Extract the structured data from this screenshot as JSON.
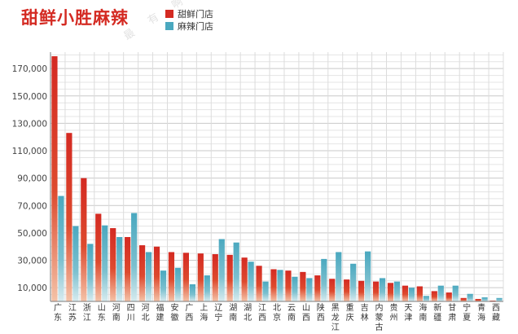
{
  "title": "甜鲜小胜麻辣",
  "legend": [
    {
      "label": "甜鲜门店",
      "color": "#d42a22"
    },
    {
      "label": "麻辣门店",
      "color": "#4aa8bf"
    }
  ],
  "watermark": "最 有 啊",
  "chart_data": {
    "type": "bar",
    "categories": [
      "广东",
      "江苏",
      "浙江",
      "山东",
      "河南",
      "四川",
      "河北",
      "福建",
      "安徽",
      "广西",
      "上海",
      "辽宁",
      "湖南",
      "湖北",
      "江西",
      "北京",
      "云南",
      "山西",
      "陕西",
      "黑龙江",
      "重庆",
      "吉林",
      "内蒙古",
      "贵州",
      "天津",
      "海南",
      "新疆",
      "甘肃",
      "宁夏",
      "青海",
      "西藏"
    ],
    "series": [
      {
        "name": "甜鲜门店",
        "color": "#d42a22",
        "values": [
          179000,
          123000,
          90000,
          64000,
          53500,
          47000,
          41000,
          40000,
          36000,
          35500,
          35000,
          34500,
          34000,
          32000,
          26000,
          23500,
          22500,
          21500,
          19000,
          16500,
          16000,
          15000,
          14500,
          13500,
          11500,
          11000,
          7500,
          6500,
          2500,
          1800,
          600
        ]
      },
      {
        "name": "麻辣门店",
        "color": "#4aa8bf",
        "values": [
          77000,
          55000,
          42000,
          55500,
          47000,
          64500,
          36000,
          22500,
          24500,
          12500,
          19000,
          45500,
          43000,
          29000,
          14500,
          23000,
          18000,
          17000,
          31000,
          36000,
          27500,
          36500,
          17000,
          14500,
          10000,
          4000,
          11500,
          11500,
          5500,
          3000,
          2500
        ]
      }
    ],
    "yticks": [
      10000,
      30000,
      50000,
      70000,
      90000,
      110000,
      130000,
      150000,
      170000
    ],
    "ytick_labels": [
      "10,000",
      "30,000",
      "50,000",
      "70,000",
      "90,000",
      "110,000",
      "130,000",
      "150,000",
      "170,000"
    ],
    "ylim": [
      0,
      182000
    ],
    "grid": true
  }
}
